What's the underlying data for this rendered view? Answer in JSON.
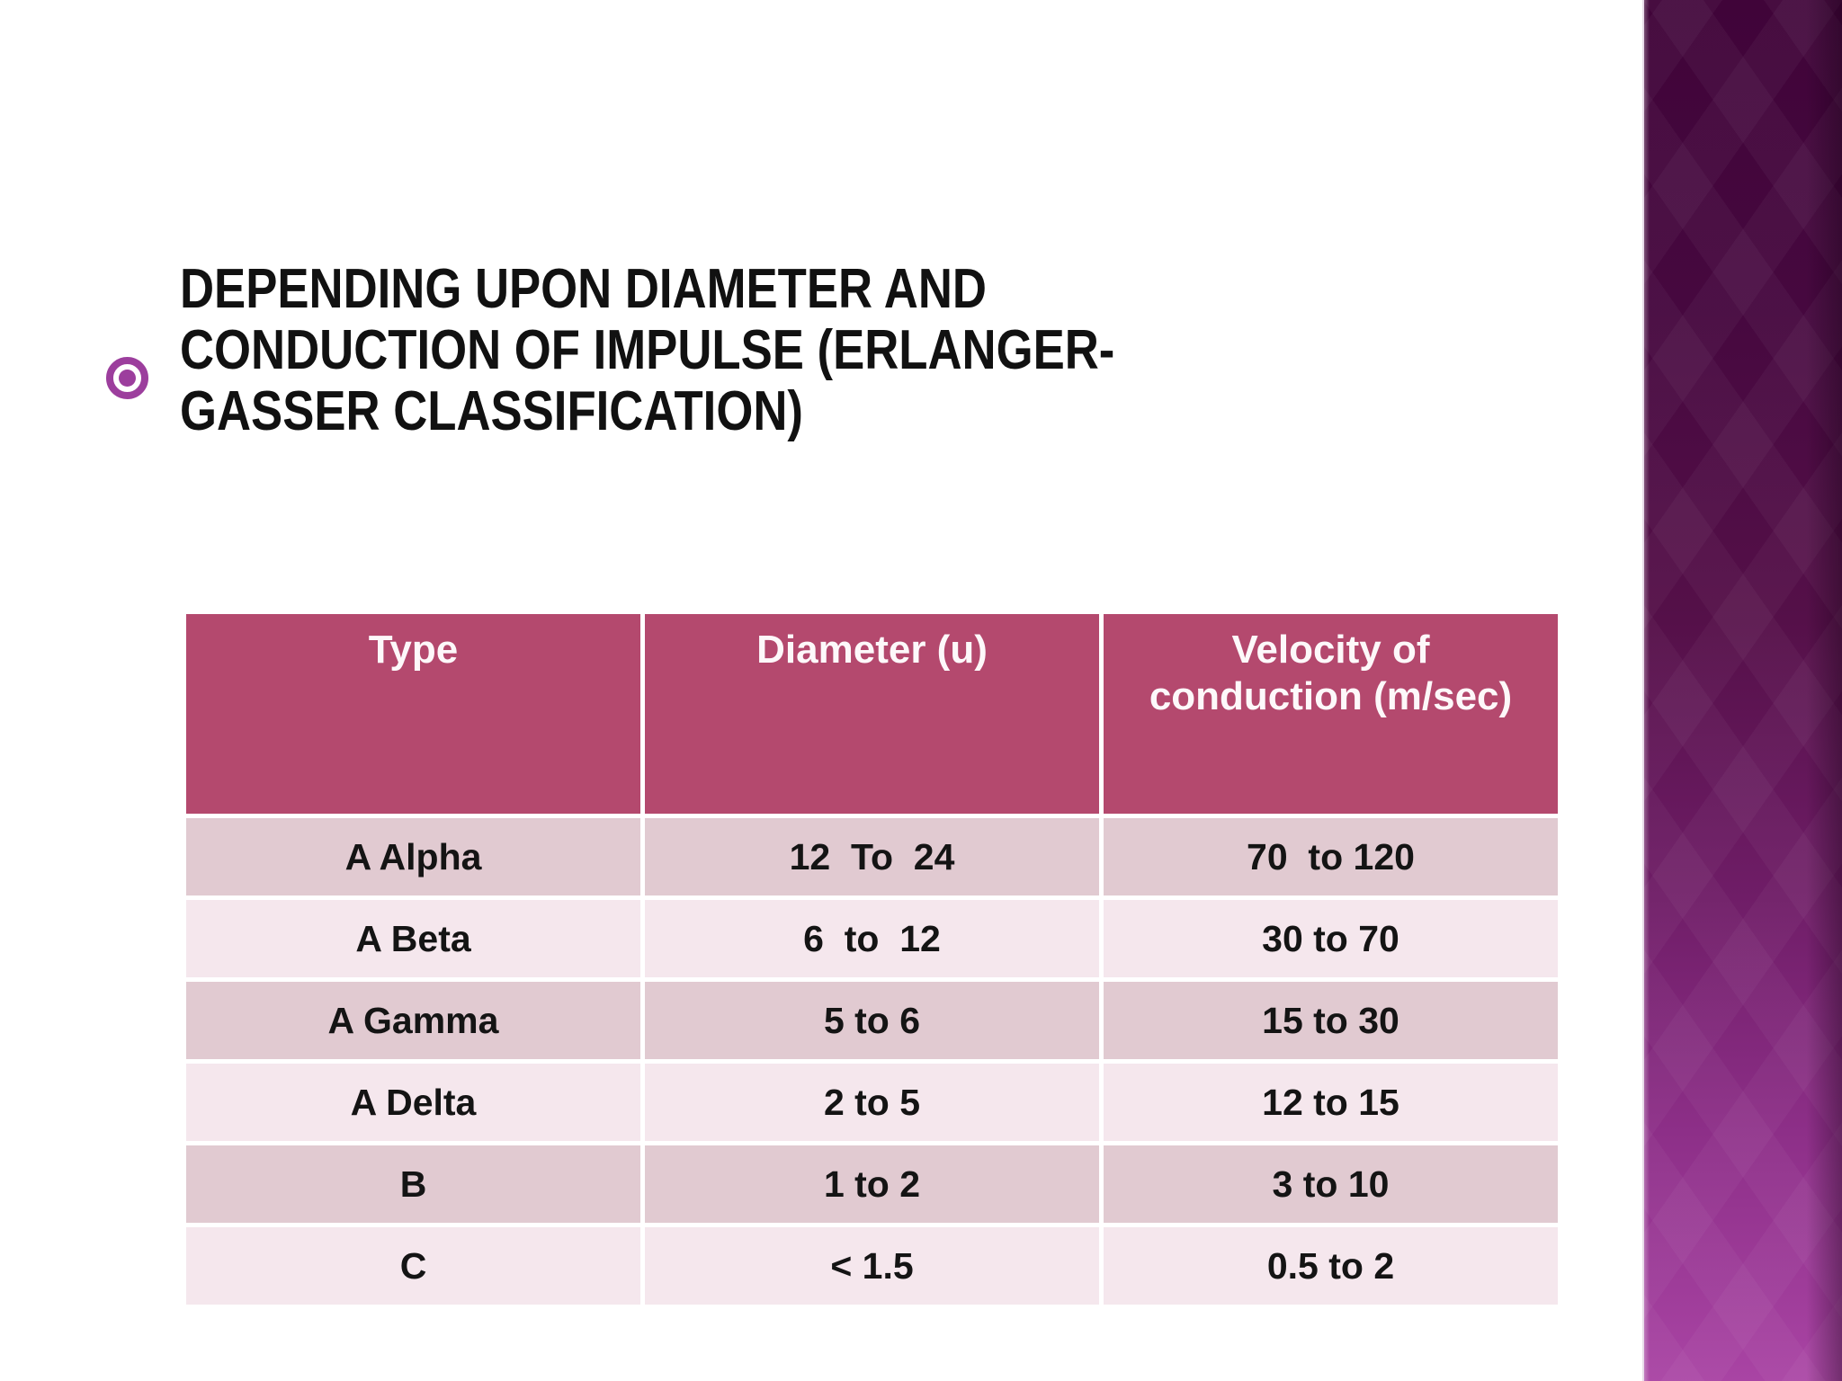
{
  "slide": {
    "title": "DEPENDING UPON DIAMETER AND CONDUCTION OF IMPULSE (ERLANGER-GASSER CLASSIFICATION)",
    "title_lines": [
      "DEPENDING UPON DIAMETER AND",
      "CONDUCTION OF IMPULSE (ERLANGER-",
      "GASSER CLASSIFICATION)"
    ],
    "bullet_icon": "target-bullet-icon"
  },
  "table": {
    "headers": [
      "Type",
      "Diameter (u)",
      "Velocity of conduction (m/sec)"
    ],
    "rows": [
      [
        "A Alpha",
        "12  To  24",
        "70  to 120"
      ],
      [
        "A Beta",
        "6  to  12",
        "30 to 70"
      ],
      [
        "A Gamma",
        "5 to 6",
        "15 to 30"
      ],
      [
        "A Delta",
        "2 to 5",
        "12 to 15"
      ],
      [
        "B",
        "1 to 2",
        "3 to 10"
      ],
      [
        "C",
        "< 1.5",
        "0.5 to 2"
      ]
    ]
  },
  "colors": {
    "header_bg": "#b4496e",
    "row_dark": "#e1cad1",
    "row_light": "#f5e7ed",
    "bullet": "#9c3e9d",
    "sidebar_top": "#400439",
    "sidebar_bottom": "#a944a4",
    "title_text": "#111111",
    "header_text": "#ffffff"
  }
}
